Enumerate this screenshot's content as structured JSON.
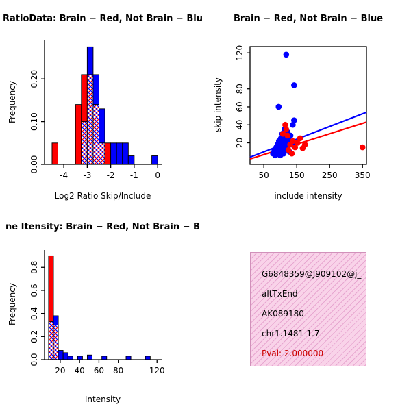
{
  "colors": {
    "red": "#ff0000",
    "blue": "#0000ff",
    "pval_red": "#cc0000",
    "info_bg": "#f9d3e9",
    "info_hatch": "#e7a6d0",
    "info_border": "#d191ba"
  },
  "chart_data": [
    {
      "id": "hist_ratio",
      "type": "histogram",
      "title": "RatioData: Brain − Red, Not Brain − Blu",
      "xlabel": "Log2 Ratio Skip/Include",
      "ylabel": "Frequency",
      "xlim": [
        -4.82,
        0.2
      ],
      "ylim": [
        0,
        0.29
      ],
      "xticks": [
        -4,
        -3,
        -2,
        -1,
        0
      ],
      "xtick_labels": [
        "-4",
        "-3",
        "-2",
        "-1",
        "0"
      ],
      "yticks": [
        0,
        0.1,
        0.2
      ],
      "ytick_labels": [
        "0.00",
        "0.10",
        "0.20"
      ],
      "bin_width": 0.25,
      "series": [
        {
          "name": "Brain",
          "color": "red",
          "bars": [
            [
              -4.5,
              0.05
            ],
            [
              -3.5,
              0.14
            ],
            [
              -3.25,
              0.21
            ],
            [
              -3.0,
              0.21
            ],
            [
              -2.75,
              0.14
            ],
            [
              -2.5,
              0.05
            ],
            [
              -2.25,
              0.05
            ]
          ]
        },
        {
          "name": "Not Brain",
          "color": "blue",
          "bars": [
            [
              -3.25,
              0.1
            ],
            [
              -3.0,
              0.275
            ],
            [
              -2.75,
              0.21
            ],
            [
              -2.5,
              0.13
            ],
            [
              -2.0,
              0.05
            ],
            [
              -1.75,
              0.05
            ],
            [
              -1.5,
              0.05
            ],
            [
              -1.25,
              0.02
            ],
            [
              -0.25,
              0.02
            ]
          ]
        }
      ]
    },
    {
      "id": "scatter",
      "type": "scatter",
      "title": "Brain − Red, Not Brain − Blue",
      "xlabel": "include intensity",
      "ylabel": "skip intensity",
      "xlim": [
        8,
        362
      ],
      "ylim": [
        -4,
        127
      ],
      "xticks": [
        50,
        150,
        250,
        350
      ],
      "xtick_labels": [
        "50",
        "150",
        "250",
        "350"
      ],
      "yticks": [
        20,
        40,
        60,
        80,
        120
      ],
      "ytick_labels": [
        "20",
        "40",
        "60",
        "80",
        "120"
      ],
      "series": [
        {
          "name": "Not Brain",
          "color": "blue",
          "points": [
            [
              78,
              8
            ],
            [
              82,
              12
            ],
            [
              85,
              6
            ],
            [
              88,
              15
            ],
            [
              90,
              10
            ],
            [
              92,
              18
            ],
            [
              95,
              8
            ],
            [
              96,
              22
            ],
            [
              98,
              13
            ],
            [
              100,
              6
            ],
            [
              100,
              17
            ],
            [
              102,
              25
            ],
            [
              104,
              10
            ],
            [
              105,
              20
            ],
            [
              106,
              30
            ],
            [
              108,
              14
            ],
            [
              110,
              8
            ],
            [
              110,
              24
            ],
            [
              112,
              18
            ],
            [
              113,
              35
            ],
            [
              115,
              12
            ],
            [
              116,
              28
            ],
            [
              118,
              20
            ],
            [
              120,
              15
            ],
            [
              122,
              32
            ],
            [
              125,
              24
            ],
            [
              128,
              10
            ],
            [
              131,
              28
            ],
            [
              135,
              18
            ],
            [
              138,
              40
            ],
            [
              142,
              45
            ],
            [
              95,
              60
            ],
            [
              142,
              84
            ],
            [
              118,
              118
            ]
          ],
          "line": [
            [
              8,
              4
            ],
            [
              362,
              54
            ]
          ]
        },
        {
          "name": "Brain",
          "color": "red",
          "points": [
            [
              108,
              30
            ],
            [
              115,
              40
            ],
            [
              118,
              35
            ],
            [
              122,
              28
            ],
            [
              125,
              12
            ],
            [
              130,
              18
            ],
            [
              135,
              8
            ],
            [
              138,
              22
            ],
            [
              145,
              15
            ],
            [
              152,
              20
            ],
            [
              160,
              25
            ],
            [
              168,
              14
            ],
            [
              175,
              18
            ],
            [
              350,
              15
            ]
          ],
          "line": [
            [
              8,
              2
            ],
            [
              362,
              43
            ]
          ]
        }
      ]
    },
    {
      "id": "hist_intensity",
      "type": "histogram",
      "title": "ne Itensity: Brain − Red, Not Brain − B",
      "xlabel": "Intensity",
      "ylabel": "Frequency",
      "xlim": [
        3.8,
        125.5
      ],
      "ylim": [
        0,
        0.95
      ],
      "xticks": [
        20,
        40,
        60,
        80,
        120
      ],
      "xtick_labels": [
        "20",
        "40",
        "60",
        "80",
        "120"
      ],
      "yticks": [
        0,
        0.2,
        0.4,
        0.6,
        0.8
      ],
      "ytick_labels": [
        "0.0",
        "0.2",
        "0.4",
        "0.6",
        "0.8"
      ],
      "bin_width": 5,
      "series": [
        {
          "name": "Brain",
          "color": "red",
          "bars": [
            [
              8,
              0.9
            ],
            [
              13,
              0.3
            ]
          ]
        },
        {
          "name": "Not Brain",
          "color": "blue",
          "bars": [
            [
              8,
              0.33
            ],
            [
              13,
              0.38
            ],
            [
              18,
              0.08
            ],
            [
              23,
              0.06
            ],
            [
              28,
              0.03
            ],
            [
              38,
              0.03
            ],
            [
              48,
              0.04
            ],
            [
              63,
              0.03
            ],
            [
              88,
              0.03
            ],
            [
              108,
              0.03
            ]
          ]
        }
      ]
    }
  ],
  "info_box": {
    "lines": [
      "G6848359@J909102@j_",
      "altTxEnd",
      "AK089180",
      "chr1.1481-1.7"
    ],
    "pval": "Pval: 2.000000"
  }
}
